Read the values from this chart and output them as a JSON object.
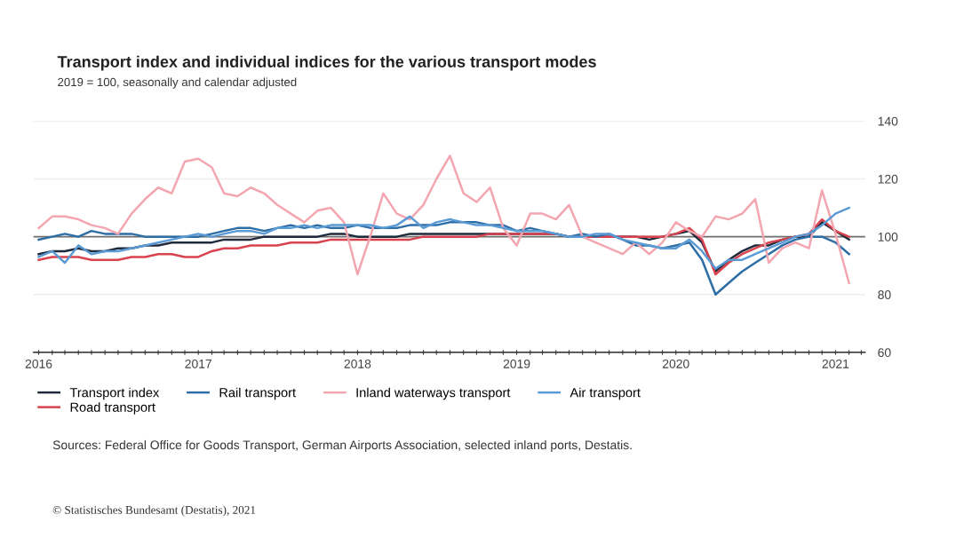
{
  "chart_data": {
    "type": "line",
    "title": "Transport index and individual indices for the various transport modes",
    "subtitle": "2019 = 100, seasonally and calendar adjusted",
    "x": [
      "2016-01",
      "2016-02",
      "2016-03",
      "2016-04",
      "2016-05",
      "2016-06",
      "2016-07",
      "2016-08",
      "2016-09",
      "2016-10",
      "2016-11",
      "2016-12",
      "2017-01",
      "2017-02",
      "2017-03",
      "2017-04",
      "2017-05",
      "2017-06",
      "2017-07",
      "2017-08",
      "2017-09",
      "2017-10",
      "2017-11",
      "2017-12",
      "2018-01",
      "2018-02",
      "2018-03",
      "2018-04",
      "2018-05",
      "2018-06",
      "2018-07",
      "2018-08",
      "2018-09",
      "2018-10",
      "2018-11",
      "2018-12",
      "2019-01",
      "2019-02",
      "2019-03",
      "2019-04",
      "2019-05",
      "2019-06",
      "2019-07",
      "2019-08",
      "2019-09",
      "2019-10",
      "2019-11",
      "2019-12",
      "2020-01",
      "2020-02",
      "2020-03",
      "2020-04",
      "2020-05",
      "2020-06",
      "2020-07",
      "2020-08",
      "2020-09",
      "2020-10",
      "2020-11",
      "2020-12",
      "2021-01",
      "2021-02"
    ],
    "series": [
      {
        "name": "Transport index",
        "color": "#1f2a3c",
        "values": [
          94,
          95,
          95,
          96,
          95,
          95,
          96,
          96,
          97,
          97,
          98,
          98,
          98,
          98,
          99,
          99,
          99,
          100,
          100,
          100,
          100,
          100,
          101,
          101,
          100,
          100,
          100,
          100,
          101,
          101,
          101,
          101,
          101,
          101,
          101,
          101,
          101,
          101,
          101,
          101,
          100,
          100,
          100,
          100,
          100,
          100,
          99,
          100,
          101,
          102,
          98,
          88,
          92,
          95,
          97,
          97,
          99,
          100,
          100,
          105,
          102,
          99
        ]
      },
      {
        "name": "Road transport",
        "color": "#d9434f",
        "values": [
          92,
          93,
          93,
          93,
          92,
          92,
          92,
          93,
          93,
          94,
          94,
          93,
          93,
          95,
          96,
          96,
          97,
          97,
          97,
          98,
          98,
          98,
          99,
          99,
          99,
          99,
          99,
          99,
          99,
          100,
          100,
          100,
          100,
          100,
          101,
          101,
          101,
          101,
          101,
          101,
          100,
          100,
          100,
          100,
          100,
          100,
          100,
          100,
          101,
          103,
          99,
          87,
          91,
          94,
          96,
          98,
          99,
          100,
          101,
          106,
          102,
          100
        ]
      },
      {
        "name": "Rail transport",
        "color": "#2e6ea6",
        "values": [
          99,
          100,
          101,
          100,
          102,
          101,
          101,
          101,
          100,
          100,
          100,
          100,
          100,
          101,
          102,
          103,
          103,
          102,
          103,
          104,
          103,
          104,
          103,
          103,
          104,
          103,
          103,
          103,
          104,
          104,
          104,
          105,
          105,
          105,
          104,
          104,
          102,
          103,
          102,
          101,
          100,
          101,
          100,
          101,
          99,
          97,
          97,
          96,
          97,
          98,
          92,
          80,
          84,
          88,
          91,
          94,
          97,
          99,
          100,
          100,
          98,
          94
        ]
      },
      {
        "name": "Inland waterways transport",
        "color": "#f4a6b0",
        "values": [
          103,
          107,
          107,
          106,
          104,
          103,
          101,
          108,
          113,
          117,
          115,
          126,
          127,
          124,
          115,
          114,
          117,
          115,
          111,
          108,
          105,
          109,
          110,
          105,
          87,
          101,
          115,
          108,
          106,
          111,
          120,
          128,
          115,
          112,
          117,
          103,
          97,
          108,
          108,
          106,
          111,
          100,
          98,
          96,
          94,
          98,
          94,
          98,
          105,
          102,
          100,
          107,
          106,
          108,
          113,
          91,
          96,
          98,
          96,
          116,
          101,
          84
        ]
      },
      {
        "name": "Air transport",
        "color": "#5b9bd5",
        "values": [
          93,
          95,
          91,
          97,
          94,
          95,
          95,
          96,
          97,
          98,
          99,
          100,
          101,
          100,
          101,
          102,
          102,
          101,
          103,
          103,
          104,
          103,
          104,
          104,
          104,
          104,
          103,
          104,
          107,
          103,
          105,
          106,
          105,
          104,
          104,
          103,
          102,
          102,
          102,
          101,
          100,
          100,
          101,
          101,
          99,
          98,
          97,
          96,
          96,
          99,
          95,
          89,
          92,
          92,
          94,
          96,
          98,
          100,
          101,
          104,
          108,
          110
        ]
      }
    ],
    "xlim": [
      "2015-12-20",
      "2021-03-10"
    ],
    "xticks": [
      {
        "value": "2016-01",
        "label": "2016"
      },
      {
        "value": "2016-02",
        "label": null
      },
      {
        "value": "2016-03",
        "label": null
      },
      {
        "value": "2016-04",
        "label": null
      },
      {
        "value": "2016-05",
        "label": null
      },
      {
        "value": "2016-06",
        "label": null
      },
      {
        "value": "2016-07",
        "label": null
      },
      {
        "value": "2016-08",
        "label": null
      },
      {
        "value": "2016-09",
        "label": null
      },
      {
        "value": "2016-10",
        "label": null
      },
      {
        "value": "2016-11",
        "label": null
      },
      {
        "value": "2016-12",
        "label": null
      },
      {
        "value": "2017-01",
        "label": "2017"
      },
      {
        "value": "2017-02",
        "label": null
      },
      {
        "value": "2017-03",
        "label": null
      },
      {
        "value": "2017-04",
        "label": null
      },
      {
        "value": "2017-05",
        "label": null
      },
      {
        "value": "2017-06",
        "label": null
      },
      {
        "value": "2017-07",
        "label": null
      },
      {
        "value": "2017-08",
        "label": null
      },
      {
        "value": "2017-09",
        "label": null
      },
      {
        "value": "2017-10",
        "label": null
      },
      {
        "value": "2017-11",
        "label": null
      },
      {
        "value": "2017-12",
        "label": null
      },
      {
        "value": "2018-01",
        "label": "2018"
      },
      {
        "value": "2018-02",
        "label": null
      },
      {
        "value": "2018-03",
        "label": null
      },
      {
        "value": "2018-04",
        "label": null
      },
      {
        "value": "2018-05",
        "label": null
      },
      {
        "value": "2018-06",
        "label": null
      },
      {
        "value": "2018-07",
        "label": null
      },
      {
        "value": "2018-08",
        "label": null
      },
      {
        "value": "2018-09",
        "label": null
      },
      {
        "value": "2018-10",
        "label": null
      },
      {
        "value": "2018-11",
        "label": null
      },
      {
        "value": "2018-12",
        "label": null
      },
      {
        "value": "2019-01",
        "label": "2019"
      },
      {
        "value": "2019-02",
        "label": null
      },
      {
        "value": "2019-03",
        "label": null
      },
      {
        "value": "2019-04",
        "label": null
      },
      {
        "value": "2019-05",
        "label": null
      },
      {
        "value": "2019-06",
        "label": null
      },
      {
        "value": "2019-07",
        "label": null
      },
      {
        "value": "2019-08",
        "label": null
      },
      {
        "value": "2019-09",
        "label": null
      },
      {
        "value": "2019-10",
        "label": null
      },
      {
        "value": "2019-11",
        "label": null
      },
      {
        "value": "2019-12",
        "label": null
      },
      {
        "value": "2020-01",
        "label": "2020"
      },
      {
        "value": "2020-02",
        "label": null
      },
      {
        "value": "2020-03",
        "label": null
      },
      {
        "value": "2020-04",
        "label": null
      },
      {
        "value": "2020-05",
        "label": null
      },
      {
        "value": "2020-06",
        "label": null
      },
      {
        "value": "2020-07",
        "label": null
      },
      {
        "value": "2020-08",
        "label": null
      },
      {
        "value": "2020-09",
        "label": null
      },
      {
        "value": "2020-10",
        "label": null
      },
      {
        "value": "2020-11",
        "label": null
      },
      {
        "value": "2020-12",
        "label": null
      },
      {
        "value": "2021-01",
        "label": "2021"
      },
      {
        "value": "2021-02",
        "label": null
      },
      {
        "value": "2021-03",
        "label": null
      }
    ],
    "ylim": [
      60,
      140
    ],
    "yticks": [
      60,
      80,
      100,
      120,
      140
    ],
    "ref_lines": [
      {
        "axis": "y",
        "value": 100,
        "label": null,
        "color": "#707070"
      }
    ],
    "grid": "y",
    "legend": "bottom",
    "annotations": [
      "Sources: Federal Office for Goods Transport, German Airports Association, selected inland ports, Destatis.",
      "© Statistisches Bundesamt (Destatis), 2021"
    ]
  }
}
